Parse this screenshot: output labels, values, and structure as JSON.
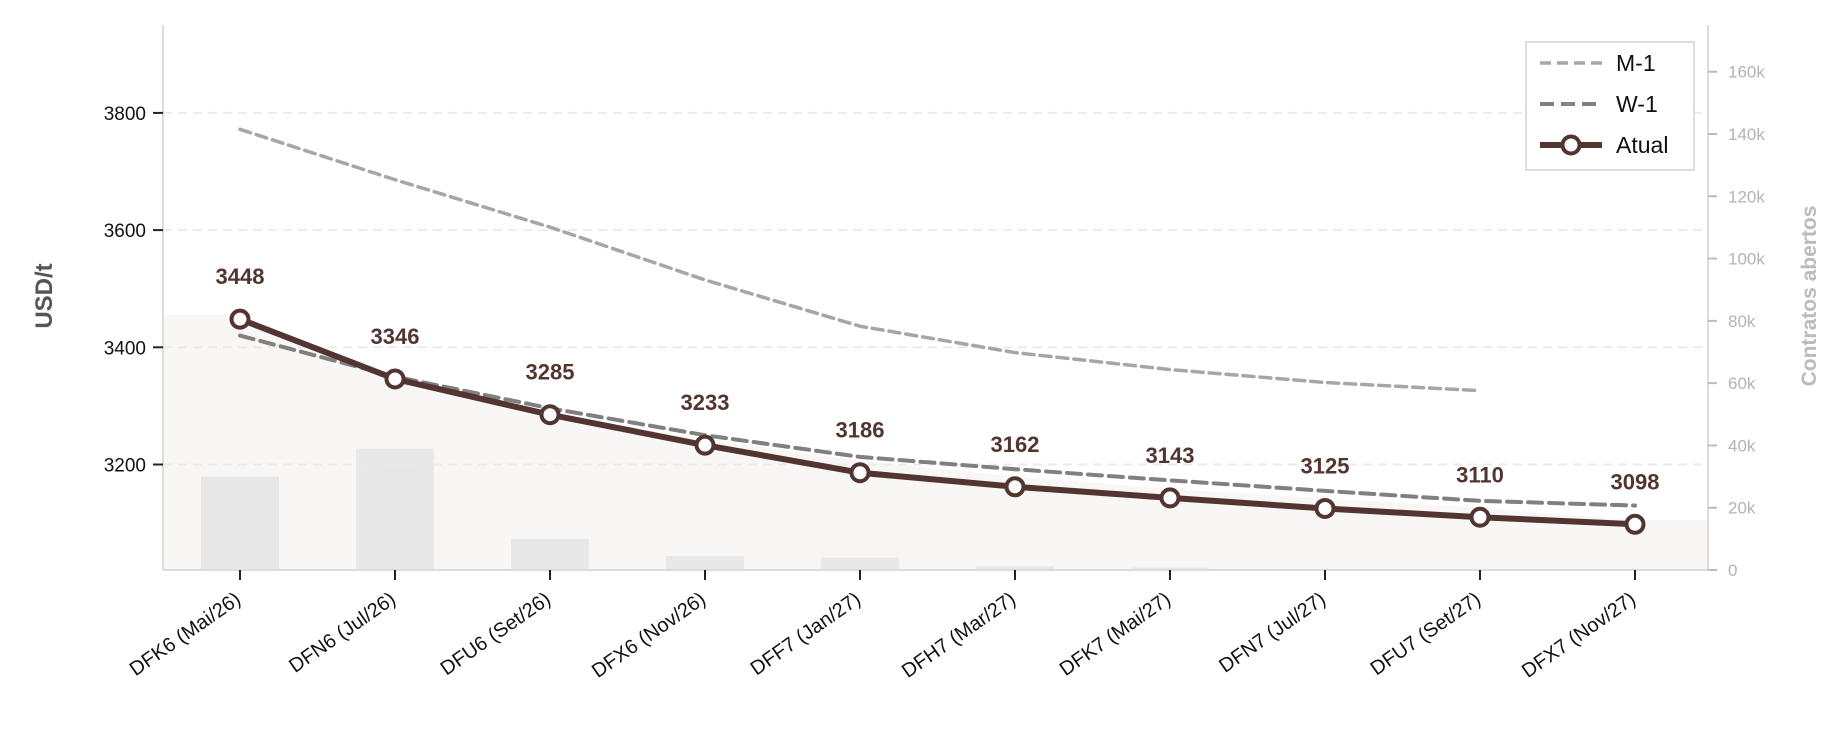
{
  "chart_data": {
    "type": "line",
    "categories": [
      "DFK6 (Mai/26)",
      "DFN6 (Jul/26)",
      "DFU6 (Set/26)",
      "DFX6 (Nov/26)",
      "DFF7 (Jan/27)",
      "DFH7 (Mar/27)",
      "DFK7 (Mai/27)",
      "DFN7 (Jul/27)",
      "DFU7 (Set/27)",
      "DFX7 (Nov/27)"
    ],
    "ylabel": "USD/t",
    "ylim": [
      3020,
      3950
    ],
    "yticks": [
      3200,
      3400,
      3600,
      3800
    ],
    "y2label": "Contratos abertos",
    "y2lim": [
      0,
      175000
    ],
    "y2ticks": [
      0,
      20000,
      40000,
      60000,
      80000,
      100000,
      120000,
      140000,
      160000
    ],
    "y2ticklabels": [
      "0",
      "20k",
      "40k",
      "60k",
      "80k",
      "100k",
      "120k",
      "140k",
      "160k"
    ],
    "series": [
      {
        "name": "M-1",
        "style": "dashed",
        "color": "#a6a6a6",
        "values": [
          3772,
          3686,
          3605,
          3515,
          3436,
          3391,
          3362,
          3340,
          3326,
          null
        ]
      },
      {
        "name": "W-1",
        "style": "dashed",
        "color": "#808080",
        "values": [
          3420,
          3350,
          3296,
          3250,
          3213,
          3192,
          3173,
          3155,
          3138,
          3130
        ]
      },
      {
        "name": "Atual",
        "style": "solid-markers",
        "color": "#523531",
        "values": [
          3448,
          3346,
          3285,
          3233,
          3186,
          3162,
          3143,
          3125,
          3110,
          3098
        ],
        "labels": [
          "3448",
          "3346",
          "3285",
          "3233",
          "3186",
          "3162",
          "3143",
          "3125",
          "3110",
          "3098"
        ]
      }
    ],
    "open_interest": {
      "type": "bar",
      "axis": "right",
      "color": "#e8e8e8",
      "values": [
        30000,
        39000,
        10000,
        4500,
        4000,
        1200,
        800,
        0,
        0,
        0
      ]
    },
    "open_interest_area": {
      "axis": "right",
      "color": "#f8f7f5",
      "values": [
        82000,
        62000,
        50000,
        42000,
        35000,
        30000,
        26000,
        23000,
        20000,
        16000
      ]
    },
    "grid": "horizontal-dashed",
    "legend_position": "top-right"
  }
}
